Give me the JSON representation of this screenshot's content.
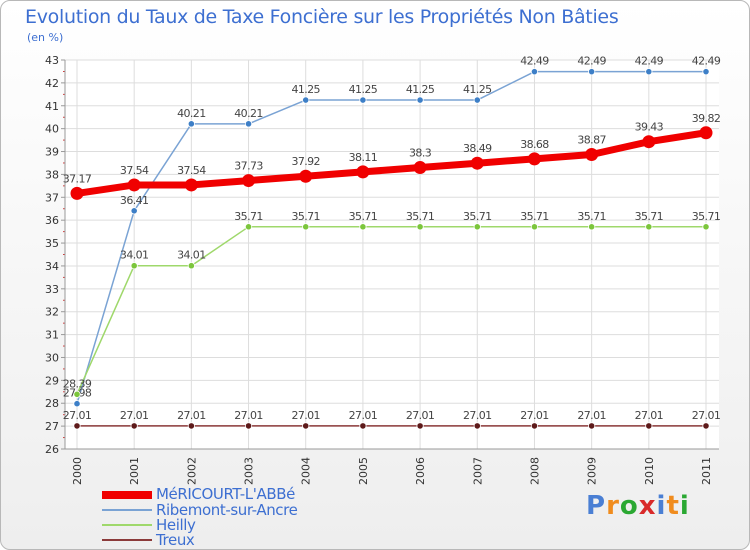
{
  "header": {
    "title": "Evolution du Taux de Taxe Foncière sur les Propriétés Non Bâties",
    "subtitle": "(en %)"
  },
  "logo": {
    "text": "Proxiti",
    "letters": [
      "P",
      "r",
      "o",
      "x",
      "i",
      "t",
      "i"
    ],
    "colors": [
      "#4a7fd4",
      "#f08c1e",
      "#2aa832",
      "#d92a2a",
      "#4a7fd4",
      "#f08c1e",
      "#2aa832"
    ]
  },
  "chart_data": {
    "type": "line",
    "title": "Evolution du Taux de Taxe Foncière sur les Propriétés Non Bâties",
    "ylabel": "(en %)",
    "xlabel": "",
    "grid": true,
    "ylim": [
      26,
      43
    ],
    "yticks": [
      "26",
      "27",
      "28",
      "29",
      "30",
      "31",
      "32",
      "33",
      "34",
      "35",
      "36",
      "37",
      "38",
      "39",
      "40",
      "41",
      "42",
      "43"
    ],
    "categories": [
      "2000",
      "2001",
      "2002",
      "2003",
      "2004",
      "2005",
      "2006",
      "2007",
      "2008",
      "2009",
      "2010",
      "2011"
    ],
    "series": [
      {
        "name": "Ribemont-sur-Ancre",
        "color": "#7aa3d4",
        "marker_color": "#3d7fc7",
        "values": [
          27.98,
          36.41,
          40.21,
          40.21,
          41.25,
          41.25,
          41.25,
          41.25,
          42.49,
          42.49,
          42.49,
          42.49
        ],
        "labels": [
          "27.98",
          "36.41",
          "40.21",
          "40.21",
          "41.25",
          "41.25",
          "41.25",
          "41.25",
          "42.49",
          "42.49",
          "42.49",
          "42.49"
        ]
      },
      {
        "name": "Heilly",
        "color": "#9fd86b",
        "marker_color": "#7cc63c",
        "values": [
          28.39,
          34.01,
          34.01,
          35.71,
          35.71,
          35.71,
          35.71,
          35.71,
          35.71,
          35.71,
          35.71,
          35.71
        ],
        "labels": [
          "28.39",
          "34.01",
          "34.01",
          "35.71",
          "35.71",
          "35.71",
          "35.71",
          "35.71",
          "35.71",
          "35.71",
          "35.71",
          "35.71"
        ]
      },
      {
        "name": "Treux",
        "color": "#8b3a3a",
        "marker_color": "#5e1a1a",
        "values": [
          27.01,
          27.01,
          27.01,
          27.01,
          27.01,
          27.01,
          27.01,
          27.01,
          27.01,
          27.01,
          27.01,
          27.01
        ],
        "labels": [
          "27.01",
          "27.01",
          "27.01",
          "27.01",
          "27.01",
          "27.01",
          "27.01",
          "27.01",
          "27.01",
          "27.01",
          "27.01",
          "27.01"
        ]
      },
      {
        "name": "MéRICOURT-L'ABBé",
        "color": "#f00000",
        "marker_color": "#f00000",
        "values": [
          37.17,
          37.54,
          37.54,
          37.73,
          37.92,
          38.11,
          38.3,
          38.49,
          38.68,
          38.87,
          39.43,
          39.82
        ],
        "labels": [
          "37.17",
          "37.54",
          "37.54",
          "37.73",
          "37.92",
          "38.11",
          "38.3",
          "38.49",
          "38.68",
          "38.87",
          "39.43",
          "39.82"
        ]
      }
    ],
    "legend": {
      "position": "bottom-left",
      "entries": [
        "MéRICOURT-L'ABBé",
        "Ribemont-sur-Ancre",
        "Heilly",
        "Treux"
      ],
      "colors": [
        "#f00000",
        "#7aa3d4",
        "#9fd86b",
        "#8b3a3a"
      ]
    }
  }
}
